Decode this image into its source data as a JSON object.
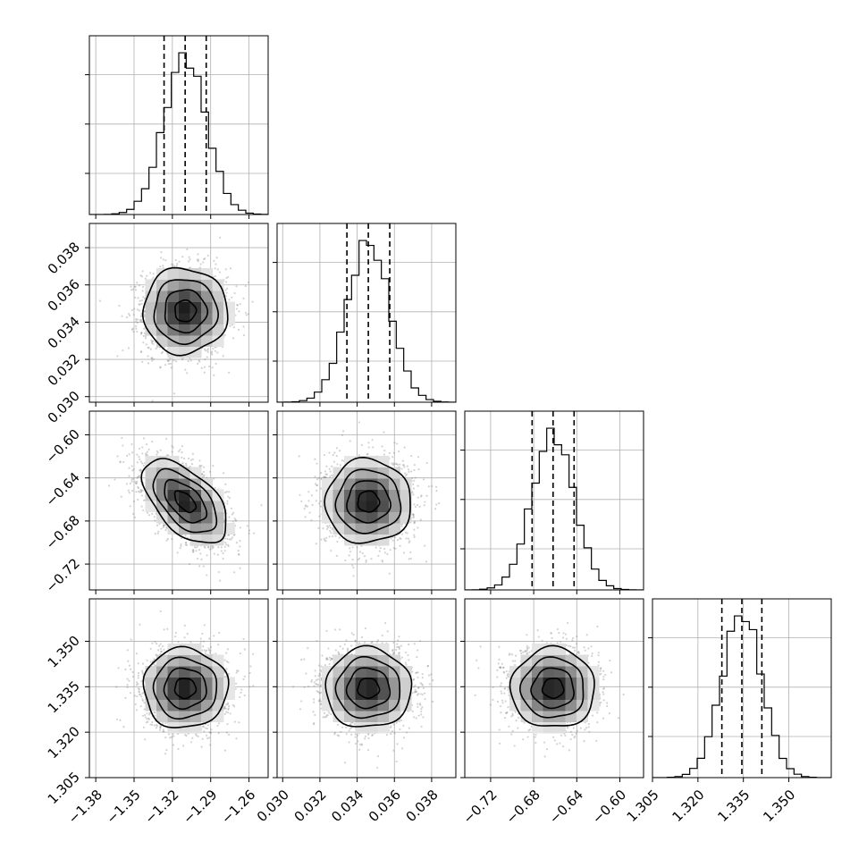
{
  "chart_data": {
    "type": "corner",
    "grid_on": true,
    "parameters": [
      {
        "mean": -1.31,
        "sigma": 0.0165,
        "range": [
          -1.385,
          -1.245
        ],
        "ticks": [
          -1.38,
          -1.35,
          -1.32,
          -1.29,
          -1.26
        ],
        "tick_labels": [
          "−1.38",
          "−1.35",
          "−1.32",
          "−1.29",
          "−1.26"
        ],
        "quantiles": [
          -1.3265,
          -1.31,
          -1.2935
        ],
        "hist_bins": 24
      },
      {
        "mean": 0.0346,
        "sigma": 0.00115,
        "range": [
          0.0297,
          0.0393
        ],
        "ticks": [
          0.03,
          0.032,
          0.034,
          0.036,
          0.038
        ],
        "tick_labels": [
          "0.030",
          "0.032",
          "0.034",
          "0.036",
          "0.038"
        ],
        "quantiles": [
          0.03345,
          0.0346,
          0.03575
        ],
        "hist_bins": 24
      },
      {
        "mean": -0.662,
        "sigma": 0.0195,
        "range": [
          -0.744,
          -0.578
        ],
        "ticks": [
          -0.72,
          -0.68,
          -0.64,
          -0.6
        ],
        "tick_labels": [
          "−0.72",
          "−0.68",
          "−0.64",
          "−0.60"
        ],
        "quantiles": [
          -0.6815,
          -0.662,
          -0.6425
        ],
        "hist_bins": 24
      },
      {
        "mean": 1.3345,
        "sigma": 0.0066,
        "range": [
          1.305,
          1.364
        ],
        "ticks": [
          1.305,
          1.32,
          1.335,
          1.35
        ],
        "tick_labels": [
          "1.305",
          "1.320",
          "1.335",
          "1.350"
        ],
        "quantiles": [
          1.3279,
          1.3345,
          1.3411
        ],
        "hist_bins": 24
      }
    ],
    "correlations": [
      [
        1,
        0,
        -0.55,
        0
      ],
      [
        0,
        1,
        0,
        0
      ],
      [
        -0.55,
        0,
        1,
        0
      ],
      [
        0,
        0,
        0,
        1
      ]
    ],
    "contour_levels_sigma": [
      0.5,
      1.0,
      1.5,
      2.0
    ],
    "colors": {
      "hist": "#000000",
      "contour": "#000000",
      "points": "#808080",
      "density_dark": "#000000",
      "grid": "#b0b0b0"
    }
  }
}
